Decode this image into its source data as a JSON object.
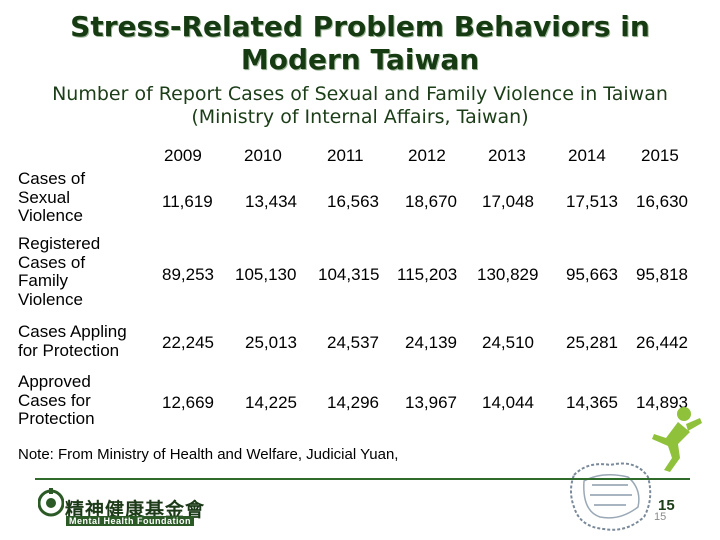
{
  "title_line1": "Stress-Related Problem Behaviors in",
  "title_line2": "Modern Taiwan",
  "subtitle_line1": "Number of Report Cases of Sexual and Family Violence in Taiwan",
  "subtitle_line2": "(Ministry of Internal Affairs, Taiwan)",
  "years": [
    "2009",
    "2010",
    "2011",
    "2012",
    "2013",
    "2014",
    "2015"
  ],
  "rows": [
    {
      "label": "Cases of\nSexual\nViolence",
      "values": [
        "11,619",
        "13,434",
        "16,563",
        "18,670",
        "17,048",
        "17,513",
        "16,630"
      ]
    },
    {
      "label": "Registered\nCases of\nFamily\nViolence",
      "values": [
        "89,253",
        "105,130",
        "104,315",
        "115,203",
        "130,829",
        "95,663",
        "95,818"
      ]
    },
    {
      "label": "Cases Appling\nfor Protection",
      "values": [
        "22,245",
        "25,013",
        "24,537",
        "24,139",
        "24,510",
        "25,281",
        "26,442"
      ]
    },
    {
      "label": "Approved\nCases for\nProtection",
      "values": [
        "12,669",
        "14,225",
        "14,296",
        "13,967",
        "14,044",
        "14,365",
        "14,893"
      ]
    }
  ],
  "note": "Note: From Ministry of Health and Welfare, Judicial Yuan,",
  "footer": {
    "logo_cn": "精神健康基金會",
    "logo_en": "Mental Health Foundation",
    "slide_number": "15",
    "slide_number_small": "15"
  },
  "colors": {
    "title": "#163a12",
    "accent": "#2f6b2a",
    "figure": "#8fc23a"
  }
}
